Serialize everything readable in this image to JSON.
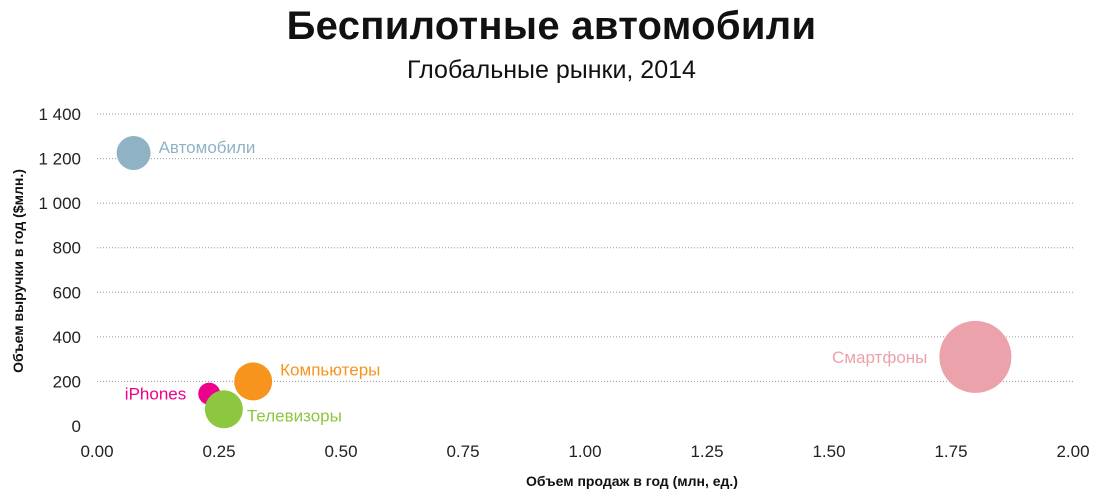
{
  "header": {
    "title": "Беспилотные автомобили",
    "subtitle": "Глобальные рынки, 2014"
  },
  "chart_data": {
    "type": "scatter",
    "title": "Беспилотные автомобили",
    "subtitle": "Глобальные рынки, 2014",
    "xlabel": "Объем продаж в год (млн, ед.)",
    "ylabel": "Объем выручки в год ($млн.)",
    "xlim": [
      0,
      2
    ],
    "ylim": [
      0,
      1400
    ],
    "xticks": [
      0,
      0.25,
      0.5,
      0.75,
      1,
      1.25,
      1.5,
      1.75,
      2
    ],
    "xtick_labels": [
      "0.00",
      "0.25",
      "0.50",
      "0.75",
      "1.00",
      "1.25",
      "1.50",
      "1.75",
      "2.00"
    ],
    "yticks": [
      0,
      200,
      400,
      600,
      800,
      1000,
      1200,
      1400
    ],
    "ytick_labels": [
      "0",
      "200",
      "400",
      "600",
      "800",
      "1 000",
      "1 200",
      "1 400"
    ],
    "grid": "horizontal dotted",
    "points": [
      {
        "name": "Автомобили",
        "x": 0.075,
        "y": 1225,
        "size": 34,
        "color": "#8fb3c4",
        "label_side": "right"
      },
      {
        "name": "Смартфоны",
        "x": 1.8,
        "y": 310,
        "size": 72,
        "color": "#eba2aa",
        "label_side": "left"
      },
      {
        "name": "Компьютеры",
        "x": 0.32,
        "y": 200,
        "size": 38,
        "color": "#f7941d",
        "label_side": "right"
      },
      {
        "name": "iPhones",
        "x": 0.23,
        "y": 145,
        "size": 22,
        "color": "#ec008c",
        "label_side": "left"
      },
      {
        "name": "Телевизоры",
        "x": 0.26,
        "y": 75,
        "size": 38,
        "color": "#8dc63f",
        "label_side": "right-below"
      }
    ]
  }
}
